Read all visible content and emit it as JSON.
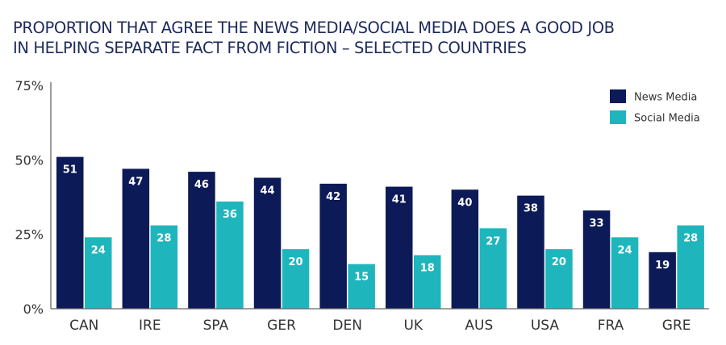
{
  "chart_data": {
    "type": "bar",
    "title_lines": [
      "PROPORTION THAT AGREE THE NEWS MEDIA/SOCIAL MEDIA DOES A GOOD JOB",
      "IN HELPING SEPARATE FACT FROM FICTION – SELECTED COUNTRIES"
    ],
    "categories": [
      "CAN",
      "IRE",
      "SPA",
      "GER",
      "DEN",
      "UK",
      "AUS",
      "USA",
      "FRA",
      "GRE"
    ],
    "series": [
      {
        "name": "News Media",
        "color": "#0c1a57",
        "values": [
          51,
          47,
          46,
          44,
          42,
          41,
          40,
          38,
          33,
          19
        ]
      },
      {
        "name": "Social Media",
        "color": "#1fb5bd",
        "values": [
          24,
          28,
          36,
          20,
          15,
          18,
          27,
          20,
          24,
          28
        ]
      }
    ],
    "xlabel": "",
    "ylabel": "",
    "ylim": [
      0,
      75
    ],
    "yticks": [
      0,
      25,
      50,
      75
    ],
    "ytick_labels": [
      "0%",
      "25%",
      "50%",
      "75%"
    ],
    "grid": false,
    "legend_position": "top-right",
    "data_labels": true
  }
}
